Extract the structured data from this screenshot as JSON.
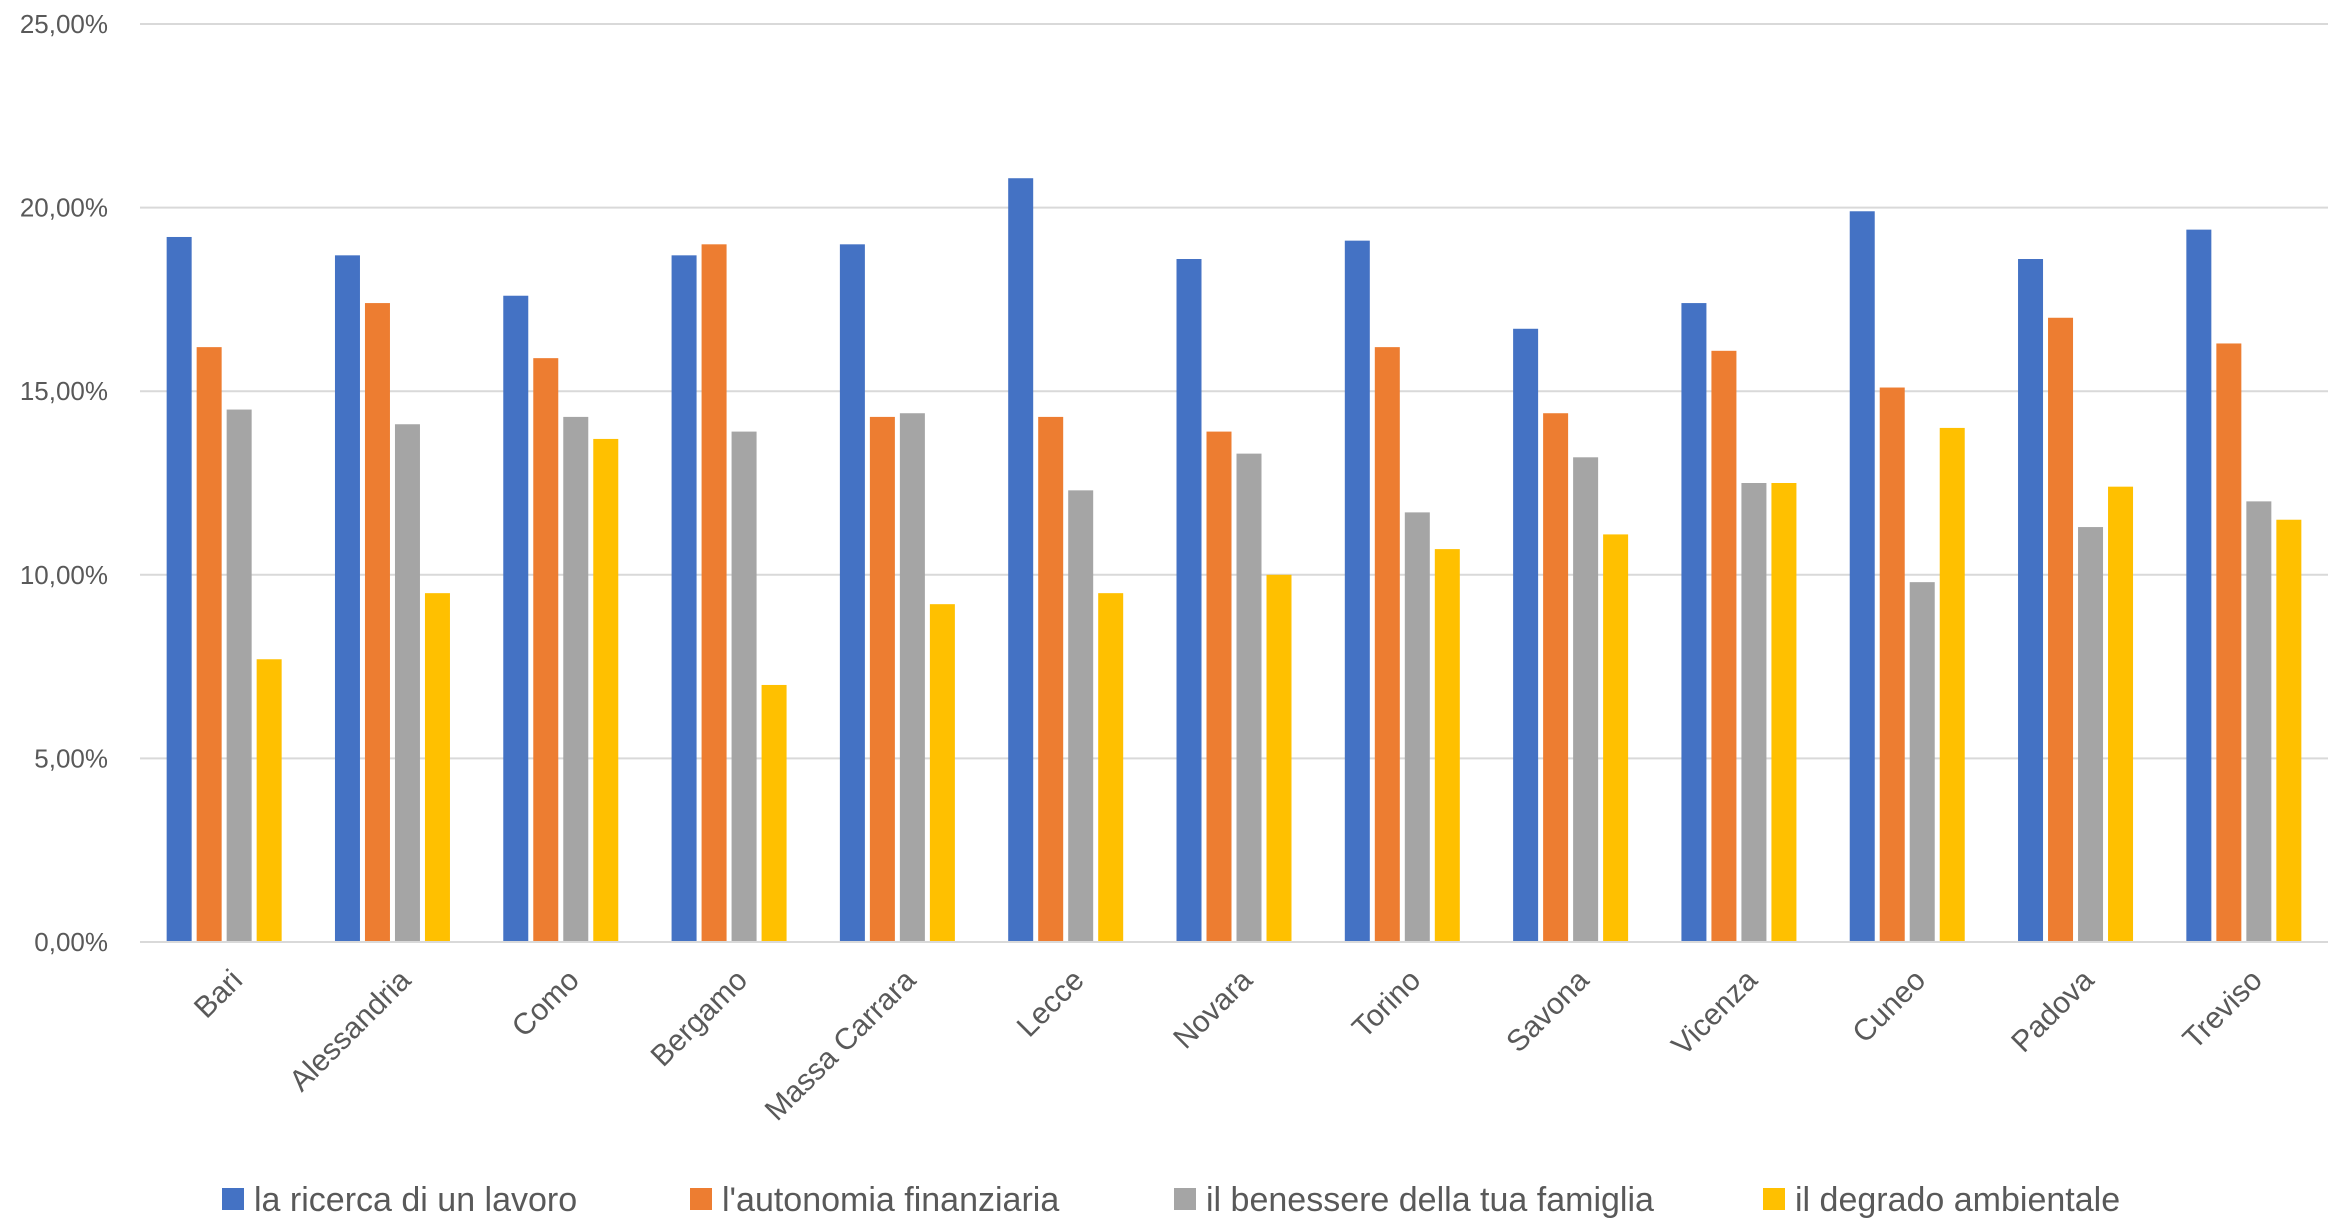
{
  "chart_data": {
    "type": "bar",
    "title": "",
    "xlabel": "",
    "ylabel": "",
    "ylim": [
      0,
      25
    ],
    "yticks": [
      "0,00%",
      "5,00%",
      "10,00%",
      "15,00%",
      "20,00%",
      "25,00%"
    ],
    "ytick_values": [
      0,
      5,
      10,
      15,
      20,
      25
    ],
    "grid": true,
    "legend_position": "bottom",
    "categories": [
      "Bari",
      "Alessandria",
      "Como",
      "Bergamo",
      "Massa Carrara",
      "Lecce",
      "Novara",
      "Torino",
      "Savona",
      "Vicenza",
      "Cuneo",
      "Padova",
      "Treviso"
    ],
    "series": [
      {
        "name": "la ricerca di un lavoro",
        "color": "#4472C4",
        "values": [
          19.2,
          18.7,
          17.6,
          18.7,
          19.0,
          20.8,
          18.6,
          19.1,
          16.7,
          17.4,
          19.9,
          18.6,
          19.4
        ]
      },
      {
        "name": "l'autonomia finanziaria",
        "color": "#ED7D31",
        "values": [
          16.2,
          17.4,
          15.9,
          19.0,
          14.3,
          14.3,
          13.9,
          16.2,
          14.4,
          16.1,
          15.1,
          17.0,
          16.3
        ]
      },
      {
        "name": "il benessere della tua famiglia",
        "color": "#A5A5A5",
        "values": [
          14.5,
          14.1,
          14.3,
          13.9,
          14.4,
          12.3,
          13.3,
          11.7,
          13.2,
          12.5,
          9.8,
          11.3,
          12.0
        ]
      },
      {
        "name": "il degrado ambientale",
        "color": "#FFC000",
        "values": [
          7.7,
          9.5,
          13.7,
          7.0,
          9.2,
          9.5,
          10.0,
          10.7,
          11.1,
          12.5,
          14.0,
          12.4,
          11.5
        ]
      }
    ]
  }
}
